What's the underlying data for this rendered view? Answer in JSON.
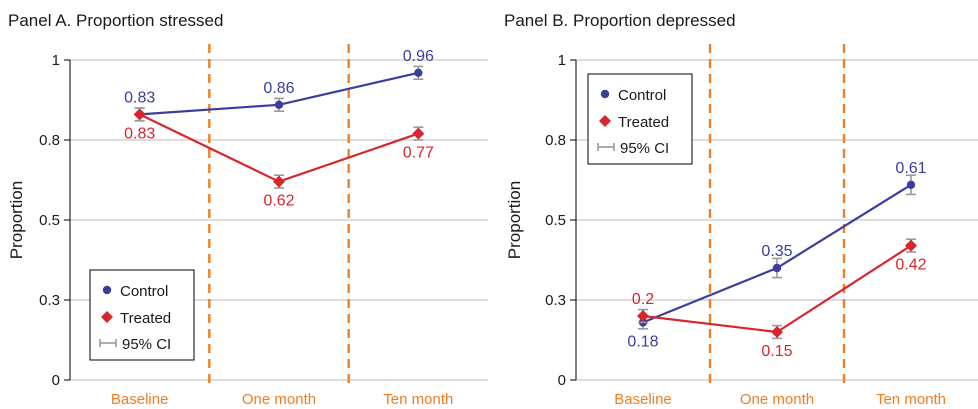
{
  "colors": {
    "control": "#3a3f9e",
    "treated": "#d7262d",
    "ci": "#9a9a9a",
    "vline": "#f07f23",
    "xtick": "#f07f23",
    "grid": "#bdbdbd",
    "text": "#1a1a1a"
  },
  "legend_labels": {
    "control": "Control",
    "treated": "Treated",
    "ci": "95% CI"
  },
  "chart_data": [
    {
      "type": "line",
      "title": "Panel A. Proportion stressed",
      "xlabel": "",
      "ylabel": "Proportion",
      "categories": [
        "Baseline",
        "One month",
        "Ten month"
      ],
      "ylim": [
        0,
        1
      ],
      "yticks": [
        0,
        0.25,
        0.5,
        0.75,
        1
      ],
      "ytick_labels": [
        "0",
        "0.3",
        "0.5",
        "0.8",
        "1"
      ],
      "grid": true,
      "legend_position": "bottom-left",
      "series": [
        {
          "name": "Control",
          "values": [
            0.83,
            0.86,
            0.96
          ],
          "ci": [
            [
              0.81,
              0.85
            ],
            [
              0.84,
              0.88
            ],
            [
              0.94,
              0.98
            ]
          ],
          "labels": [
            "0.83",
            "0.86",
            "0.96"
          ],
          "label_side": [
            "above",
            "above",
            "above"
          ]
        },
        {
          "name": "Treated",
          "values": [
            0.83,
            0.62,
            0.77
          ],
          "ci": [
            [
              0.81,
              0.85
            ],
            [
              0.6,
              0.64
            ],
            [
              0.75,
              0.79
            ]
          ],
          "labels": [
            "0.83",
            "0.62",
            "0.77"
          ],
          "label_side": [
            "below",
            "below",
            "below"
          ]
        }
      ]
    },
    {
      "type": "line",
      "title": "Panel B. Proportion depressed",
      "xlabel": "",
      "ylabel": "Proportion",
      "categories": [
        "Baseline",
        "One month",
        "Ten month"
      ],
      "ylim": [
        0,
        1
      ],
      "yticks": [
        0,
        0.25,
        0.5,
        0.75,
        1
      ],
      "ytick_labels": [
        "0",
        "0.3",
        "0.5",
        "0.8",
        "1"
      ],
      "grid": true,
      "legend_position": "top-left",
      "series": [
        {
          "name": "Control",
          "values": [
            0.18,
            0.35,
            0.61
          ],
          "ci": [
            [
              0.16,
              0.2
            ],
            [
              0.32,
              0.38
            ],
            [
              0.58,
              0.64
            ]
          ],
          "labels": [
            "0.18",
            "0.35",
            "0.61"
          ],
          "label_side": [
            "below",
            "above",
            "above"
          ]
        },
        {
          "name": "Treated",
          "values": [
            0.2,
            0.15,
            0.42
          ],
          "ci": [
            [
              0.18,
              0.22
            ],
            [
              0.13,
              0.17
            ],
            [
              0.4,
              0.44
            ]
          ],
          "labels": [
            "0.2",
            "0.15",
            "0.42"
          ],
          "label_side": [
            "above",
            "below",
            "below"
          ]
        }
      ]
    }
  ]
}
